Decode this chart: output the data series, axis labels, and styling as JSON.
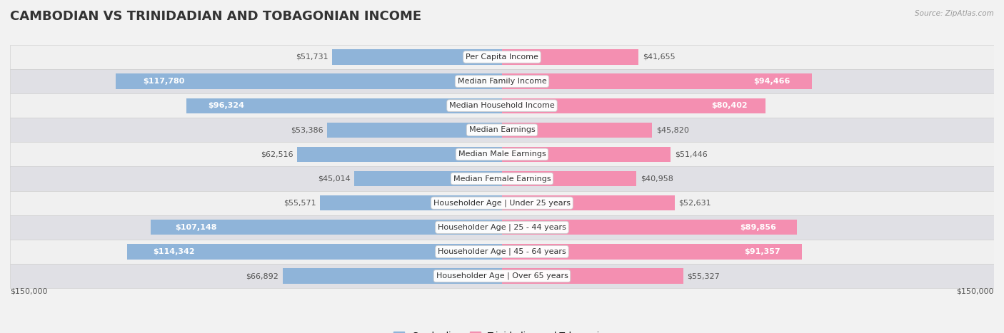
{
  "title": "CAMBODIAN VS TRINIDADIAN AND TOBAGONIAN INCOME",
  "source": "Source: ZipAtlas.com",
  "categories": [
    "Per Capita Income",
    "Median Family Income",
    "Median Household Income",
    "Median Earnings",
    "Median Male Earnings",
    "Median Female Earnings",
    "Householder Age | Under 25 years",
    "Householder Age | 25 - 44 years",
    "Householder Age | 45 - 64 years",
    "Householder Age | Over 65 years"
  ],
  "cambodian_values": [
    51731,
    117780,
    96324,
    53386,
    62516,
    45014,
    55571,
    107148,
    114342,
    66892
  ],
  "trinidadian_values": [
    41655,
    94466,
    80402,
    45820,
    51446,
    40958,
    52631,
    89856,
    91357,
    55327
  ],
  "cambodian_color": "#8fb4d9",
  "trinidadian_color": "#f48fb1",
  "max_value": 150000,
  "x_label_left": "$150,000",
  "x_label_right": "$150,000",
  "legend_cambodian": "Cambodian",
  "legend_trinidadian": "Trinidadian and Tobagonian",
  "row_bg_even": "#f7f7f7",
  "row_bg_odd": "#ebebeb",
  "bar_height": 0.62,
  "title_fontsize": 13,
  "value_fontsize": 8,
  "category_fontsize": 8,
  "legend_fontsize": 9,
  "inside_label_threshold": 0.45
}
